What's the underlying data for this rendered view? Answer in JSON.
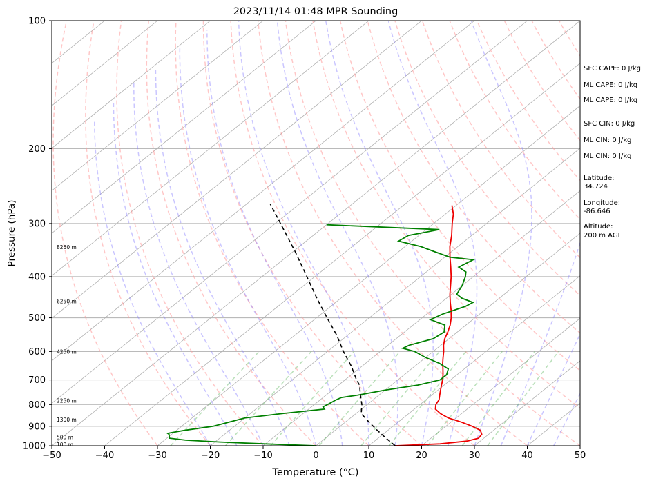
{
  "chart_data": {
    "type": "line",
    "title": "2023/11/14 01:48 MPR Sounding",
    "xlabel": "Temperature (°C)",
    "ylabel": "Pressure (hPa)",
    "xlim": [
      -50,
      50
    ],
    "ylim": [
      1000,
      100
    ],
    "y_scale": "log",
    "skewed": true,
    "grid": true,
    "x_ticks": [
      -50,
      -40,
      -30,
      -20,
      -10,
      0,
      10,
      20,
      30,
      40,
      50
    ],
    "x_tick_labels": [
      "−50",
      "−40",
      "−30",
      "−20",
      "−10",
      "0",
      "10",
      "20",
      "30",
      "40",
      "50"
    ],
    "y_ticks": [
      1000,
      900,
      800,
      700,
      600,
      500,
      400,
      300,
      200,
      100
    ],
    "y_tick_labels": [
      "1000",
      "900",
      "800",
      "700",
      "600",
      "500",
      "400",
      "300",
      "200",
      "100"
    ],
    "series": [
      {
        "key": "temperature",
        "color": "#ee0000",
        "points": [
          [
            1000,
            15.0
          ],
          [
            990,
            23.0
          ],
          [
            975,
            27.5
          ],
          [
            960,
            29.0
          ],
          [
            940,
            28.7
          ],
          [
            920,
            27.5
          ],
          [
            900,
            25.0
          ],
          [
            880,
            22.0
          ],
          [
            860,
            18.5
          ],
          [
            840,
            16.0
          ],
          [
            820,
            14.0
          ],
          [
            800,
            13.0
          ],
          [
            780,
            12.5
          ],
          [
            760,
            11.5
          ],
          [
            740,
            10.5
          ],
          [
            720,
            9.5
          ],
          [
            700,
            8.5
          ],
          [
            680,
            7.3
          ],
          [
            660,
            6.0
          ],
          [
            640,
            4.6
          ],
          [
            620,
            3.3
          ],
          [
            600,
            2.0
          ],
          [
            580,
            0.5
          ],
          [
            560,
            -0.8
          ],
          [
            540,
            -1.8
          ],
          [
            520,
            -3.0
          ],
          [
            500,
            -4.5
          ],
          [
            480,
            -6.3
          ],
          [
            460,
            -8.3
          ],
          [
            440,
            -10.3
          ],
          [
            420,
            -12.2
          ],
          [
            400,
            -14.2
          ],
          [
            380,
            -16.5
          ],
          [
            360,
            -19.0
          ],
          [
            340,
            -21.5
          ],
          [
            320,
            -23.8
          ],
          [
            300,
            -26.5
          ],
          [
            285,
            -28.5
          ],
          [
            272,
            -30.8
          ]
        ]
      },
      {
        "key": "dewpoint",
        "color": "#008000",
        "points": [
          [
            1000,
            0.0
          ],
          [
            990,
            -10.0
          ],
          [
            980,
            -19.0
          ],
          [
            970,
            -26.0
          ],
          [
            960,
            -29.5
          ],
          [
            940,
            -30.5
          ],
          [
            935,
            -31.0
          ],
          [
            920,
            -28.5
          ],
          [
            900,
            -24.0
          ],
          [
            880,
            -22.0
          ],
          [
            860,
            -20.0
          ],
          [
            840,
            -14.0
          ],
          [
            820,
            -7.0
          ],
          [
            810,
            -7.8
          ],
          [
            800,
            -7.5
          ],
          [
            780,
            -7.0
          ],
          [
            770,
            -6.5
          ],
          [
            760,
            -4.0
          ],
          [
            740,
            0.0
          ],
          [
            720,
            5.0
          ],
          [
            700,
            8.0
          ],
          [
            680,
            8.0
          ],
          [
            660,
            7.0
          ],
          [
            640,
            4.0
          ],
          [
            620,
            0.0
          ],
          [
            600,
            -3.5
          ],
          [
            590,
            -6.5
          ],
          [
            580,
            -6.0
          ],
          [
            560,
            -3.0
          ],
          [
            540,
            -2.5
          ],
          [
            520,
            -4.0
          ],
          [
            505,
            -8.0
          ],
          [
            490,
            -7.0
          ],
          [
            470,
            -4.5
          ],
          [
            460,
            -4.0
          ],
          [
            450,
            -7.0
          ],
          [
            440,
            -9.0
          ],
          [
            420,
            -10.0
          ],
          [
            400,
            -11.5
          ],
          [
            390,
            -12.5
          ],
          [
            380,
            -15.0
          ],
          [
            365,
            -14.0
          ],
          [
            360,
            -19.0
          ],
          [
            350,
            -23.0
          ],
          [
            340,
            -27.0
          ],
          [
            330,
            -32.5
          ],
          [
            320,
            -32.0
          ],
          [
            310,
            -27.5
          ],
          [
            302,
            -50.0
          ]
        ]
      },
      {
        "key": "parcel",
        "color": "#000000",
        "points": [
          [
            1000,
            15.0
          ],
          [
            960,
            11.5
          ],
          [
            920,
            8.0
          ],
          [
            880,
            4.5
          ],
          [
            840,
            1.0
          ],
          [
            800,
            -1.0
          ],
          [
            760,
            -3.5
          ],
          [
            720,
            -6.0
          ],
          [
            700,
            -7.8
          ],
          [
            650,
            -12.0
          ],
          [
            600,
            -17.0
          ],
          [
            550,
            -22.0
          ],
          [
            500,
            -28.0
          ],
          [
            450,
            -34.5
          ],
          [
            400,
            -41.5
          ],
          [
            350,
            -49.5
          ],
          [
            300,
            -59.0
          ],
          [
            270,
            -65.5
          ]
        ]
      }
    ],
    "height_labels": [
      {
        "p": 992,
        "text": "100 m"
      },
      {
        "p": 955,
        "text": "500 m"
      },
      {
        "p": 868,
        "text": "1300 m"
      },
      {
        "p": 783,
        "text": "2250 m"
      },
      {
        "p": 600,
        "text": "4250 m"
      },
      {
        "p": 457,
        "text": "6250 m"
      },
      {
        "p": 341,
        "text": "8250 m"
      }
    ],
    "annotations": {
      "sfc_cape": "SFC CAPE: 0 J/kg",
      "ml_cape_1": "ML CAPE: 0 J/kg",
      "ml_cape_2": "ML CAPE: 0 J/kg",
      "sfc_cin": "SFC CIN: 0 J/kg",
      "ml_cin_1": "ML CIN: 0 J/kg",
      "ml_cin_2": "ML CIN: 0 J/kg",
      "latitude_label": "Latitude:",
      "latitude_value": "34.724",
      "longitude_label": "Longitude:",
      "longitude_value": "-86.646",
      "altitude_label": "Altitude:",
      "altitude_value": "200 m AGL"
    },
    "background": {
      "isotherm_spacing_c": 10,
      "dry_adiabats_theta_c": [
        -30,
        -20,
        -10,
        0,
        10,
        20,
        30,
        40,
        50,
        60,
        70,
        80,
        90,
        100,
        110,
        120,
        130,
        140,
        150
      ],
      "moist_adiabats_surface_c": [
        -20,
        -15,
        -10,
        -5,
        0,
        5,
        10,
        15,
        20,
        25,
        30,
        35,
        40,
        45
      ],
      "mixing_ratios_gkg": [
        0.4,
        1,
        2,
        4,
        7,
        10,
        16,
        24,
        32
      ]
    }
  }
}
